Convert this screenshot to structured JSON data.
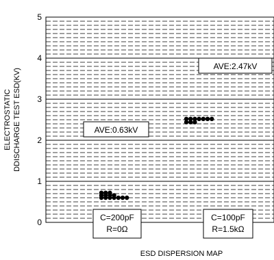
{
  "chart_data": {
    "type": "scatter",
    "title": "",
    "xlabel": "ESD DISPERSION MAP",
    "ylabel_lines": [
      "ELECTROSTATIC",
      "DDISCHARGE TEST ESD(KV)"
    ],
    "ylim": [
      0,
      5
    ],
    "yticks": [
      0,
      1,
      2,
      3,
      4,
      5
    ],
    "grid": true,
    "series": [
      {
        "category_lines": [
          "C=200pF",
          "R=0Ω"
        ],
        "annotation": "AVE:0.63kV",
        "points": [
          {
            "rank": 0,
            "y": 0.72
          },
          {
            "rank": 1,
            "y": 0.72
          },
          {
            "rank": 2,
            "y": 0.72
          },
          {
            "rank": 0,
            "y": 0.66
          },
          {
            "rank": 1,
            "y": 0.66
          },
          {
            "rank": 2,
            "y": 0.66
          },
          {
            "rank": 3,
            "y": 0.66
          },
          {
            "rank": 0,
            "y": 0.6
          },
          {
            "rank": 1,
            "y": 0.6
          },
          {
            "rank": 2,
            "y": 0.6
          },
          {
            "rank": 3,
            "y": 0.6
          },
          {
            "rank": 4,
            "y": 0.6
          },
          {
            "rank": 5,
            "y": 0.6
          },
          {
            "rank": 6,
            "y": 0.6
          }
        ]
      },
      {
        "category_lines": [
          "C=100pF",
          "R=1.5kΩ"
        ],
        "annotation": "AVE:2.47kV",
        "points": [
          {
            "rank": 0,
            "y": 2.52
          },
          {
            "rank": 1,
            "y": 2.52
          },
          {
            "rank": 2,
            "y": 2.52
          },
          {
            "rank": 3,
            "y": 2.52
          },
          {
            "rank": 4,
            "y": 2.52
          },
          {
            "rank": 5,
            "y": 2.52
          },
          {
            "rank": 6,
            "y": 2.52
          },
          {
            "rank": 0,
            "y": 2.44
          },
          {
            "rank": 1,
            "y": 2.44
          },
          {
            "rank": 2,
            "y": 2.44
          }
        ]
      }
    ]
  }
}
